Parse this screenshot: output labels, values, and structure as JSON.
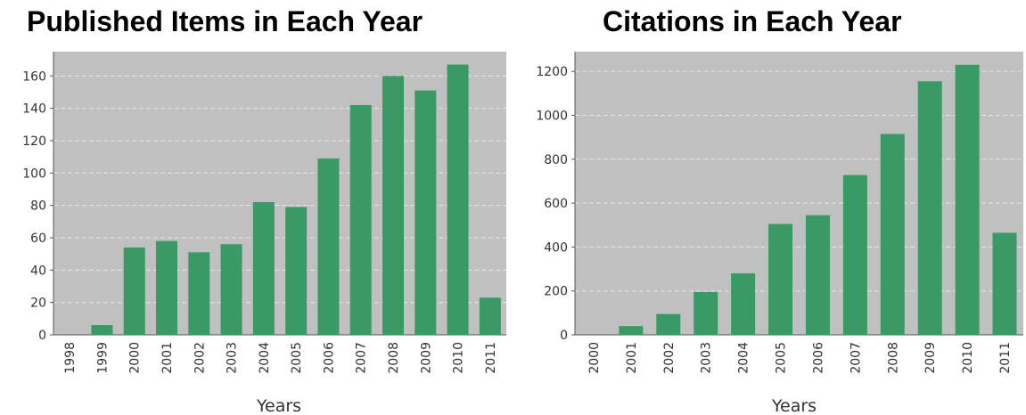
{
  "colors": {
    "plot_bg": "#c0c0c0",
    "bar": "#3a9a66",
    "grid": "#e6e6e6",
    "axis": "#555555"
  },
  "chart_data": [
    {
      "type": "bar",
      "title": "Published Items in Each Year",
      "xlabel": "Years",
      "ylabel": "",
      "ylim": [
        0,
        175
      ],
      "yticks": [
        0,
        20,
        40,
        60,
        80,
        100,
        120,
        140,
        160
      ],
      "categories": [
        "1998",
        "1999",
        "2000",
        "2001",
        "2002",
        "2003",
        "2004",
        "2005",
        "2006",
        "2007",
        "2008",
        "2009",
        "2010",
        "2011"
      ],
      "values": [
        0,
        6,
        54,
        58,
        51,
        56,
        82,
        79,
        109,
        142,
        160,
        151,
        167,
        23
      ],
      "grid": true,
      "legend": "none"
    },
    {
      "type": "bar",
      "title": "Citations in Each Year",
      "xlabel": "Years",
      "ylabel": "",
      "ylim": [
        0,
        1290
      ],
      "yticks": [
        0,
        200,
        400,
        600,
        800,
        1000,
        1200
      ],
      "categories": [
        "2000",
        "2001",
        "2002",
        "2003",
        "2004",
        "2005",
        "2006",
        "2007",
        "2008",
        "2009",
        "2010",
        "2011"
      ],
      "values": [
        0,
        40,
        95,
        195,
        280,
        505,
        545,
        728,
        915,
        1155,
        1230,
        465
      ],
      "grid": true,
      "legend": "none"
    }
  ]
}
